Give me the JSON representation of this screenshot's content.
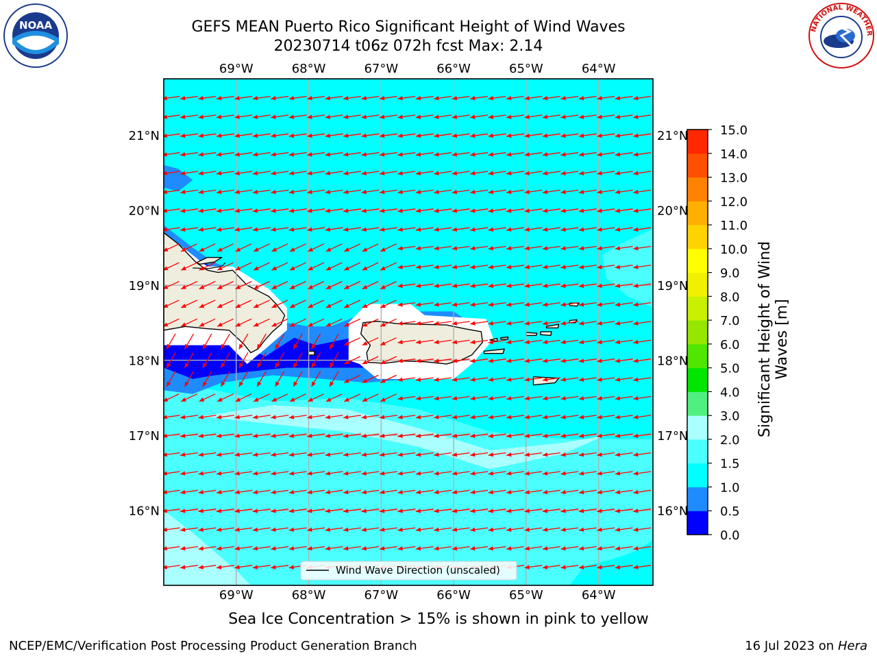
{
  "header": {
    "title_line1": "GEFS MEAN Puerto Rico Significant Height of Wind Waves",
    "title_line2": "20230714 t06z 072h fcst   Max: 2.14"
  },
  "logos": {
    "left": {
      "text": "NOAA",
      "icon": "noaa-logo"
    },
    "right": {
      "text": "NATIONAL WEATHER SERVICE",
      "icon": "nws-logo"
    }
  },
  "map": {
    "lon_labels": [
      "69°W",
      "68°W",
      "67°W",
      "66°W",
      "65°W",
      "64°W"
    ],
    "lat_labels": [
      "21°N",
      "20°N",
      "19°N",
      "18°N",
      "17°N",
      "16°N"
    ],
    "lon_range": [
      -70.0,
      -63.25
    ],
    "lat_range": [
      15.0,
      21.75
    ],
    "land_color": "#efedde",
    "coast_color": "#000000",
    "arrow_color": "#ff0000",
    "grid_color": "#b0b0b0",
    "legend_label": "Wind Wave Direction (unscaled)"
  },
  "colorbar": {
    "label": "Significant Height of Wind Waves [m]",
    "ticks": [
      "0.0",
      "0.5",
      "1.0",
      "1.5",
      "2.0",
      "3.0",
      "4.0",
      "5.0",
      "6.0",
      "7.0",
      "8.0",
      "9.0",
      "10.0",
      "11.0",
      "12.0",
      "13.0",
      "14.0",
      "15.0"
    ],
    "colors": [
      "#0000ff",
      "#1e8cff",
      "#00ffff",
      "#4bffff",
      "#aaffff",
      "#50f080",
      "#00e600",
      "#50e600",
      "#96e600",
      "#c8f000",
      "#f0f000",
      "#ffff00",
      "#ffd200",
      "#ffaf00",
      "#ff8200",
      "#ff5000",
      "#ff2800",
      "#ff0000"
    ]
  },
  "footer": {
    "note": "Sea Ice Concentration > 15% is shown in pink to yellow",
    "left": "NCEP/EMC/Verification Post Processing Product Generation Branch",
    "right_prefix": "16 Jul 2023 on ",
    "right_machine": "Hera"
  }
}
